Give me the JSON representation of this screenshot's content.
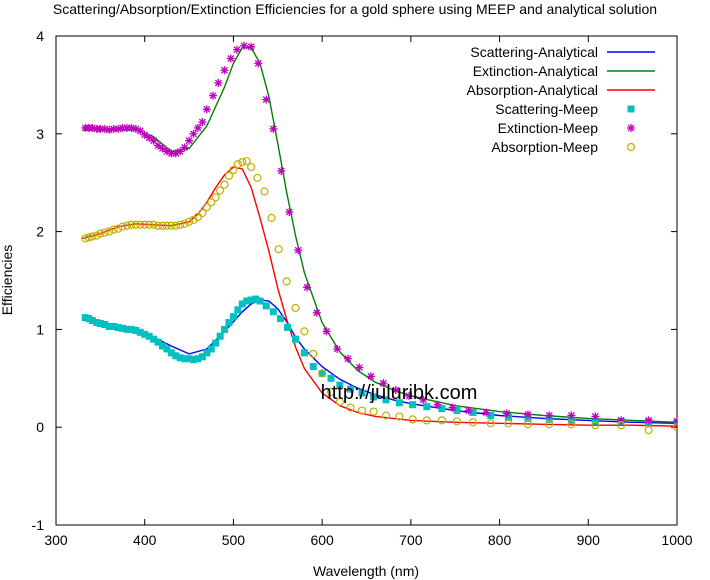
{
  "chart_data": {
    "type": "line",
    "title": "Scattering/Absorption/Extinction Efficiencies for a gold sphere using MEEP and analytical solution",
    "xlabel": "Wavelength (nm)",
    "ylabel": "Efficiencies",
    "xlim": [
      300,
      1000
    ],
    "ylim": [
      -1,
      4
    ],
    "xticks": [
      "300",
      "400",
      "500",
      "600",
      "700",
      "800",
      "900",
      "1000"
    ],
    "yticks": [
      "-1",
      "0",
      "1",
      "2",
      "3",
      "4"
    ],
    "grid": false,
    "legend_position": "top-right",
    "watermark": "http://juluribk.com",
    "series": [
      {
        "name": "Scattering-Analytical",
        "style": "line",
        "color": "#0000ff",
        "x": [
          330,
          350,
          370,
          390,
          410,
          430,
          450,
          470,
          490,
          500,
          510,
          520,
          530,
          540,
          550,
          560,
          570,
          580,
          600,
          620,
          640,
          660,
          680,
          700,
          750,
          800,
          850,
          900,
          950,
          1000
        ],
        "y": [
          1.12,
          1.07,
          1.02,
          0.98,
          0.92,
          0.83,
          0.75,
          0.8,
          0.98,
          1.08,
          1.18,
          1.26,
          1.3,
          1.29,
          1.21,
          1.08,
          0.92,
          0.8,
          0.62,
          0.49,
          0.4,
          0.33,
          0.28,
          0.24,
          0.17,
          0.12,
          0.09,
          0.07,
          0.05,
          0.04
        ]
      },
      {
        "name": "Extinction-Analytical",
        "style": "line",
        "color": "#008000",
        "x": [
          330,
          350,
          370,
          390,
          410,
          430,
          450,
          470,
          490,
          500,
          510,
          520,
          530,
          540,
          550,
          560,
          570,
          580,
          600,
          620,
          640,
          660,
          680,
          700,
          750,
          800,
          850,
          900,
          950,
          1000
        ],
        "y": [
          3.04,
          3.04,
          3.04,
          3.04,
          2.97,
          2.82,
          2.85,
          3.08,
          3.48,
          3.72,
          3.88,
          3.88,
          3.72,
          3.38,
          2.9,
          2.4,
          1.96,
          1.58,
          1.07,
          0.77,
          0.58,
          0.46,
          0.38,
          0.32,
          0.22,
          0.16,
          0.12,
          0.09,
          0.07,
          0.05
        ]
      },
      {
        "name": "Absorption-Analytical",
        "style": "line",
        "color": "#ff0000",
        "x": [
          330,
          350,
          370,
          390,
          410,
          430,
          450,
          460,
          470,
          480,
          490,
          500,
          510,
          520,
          530,
          540,
          550,
          560,
          570,
          580,
          600,
          620,
          640,
          660,
          680,
          700,
          750,
          800,
          850,
          900,
          950,
          1000
        ],
        "y": [
          1.93,
          1.98,
          2.05,
          2.08,
          2.07,
          2.06,
          2.1,
          2.18,
          2.3,
          2.45,
          2.58,
          2.66,
          2.64,
          2.45,
          2.14,
          1.8,
          1.42,
          1.1,
          0.82,
          0.6,
          0.35,
          0.22,
          0.15,
          0.11,
          0.09,
          0.07,
          0.05,
          0.04,
          0.03,
          0.02,
          0.02,
          0.01
        ]
      },
      {
        "name": "Scattering-Meep",
        "style": "square",
        "color": "#00c0c0",
        "x": [
          333,
          337,
          341,
          346,
          350,
          355,
          360,
          365,
          370,
          375,
          380,
          385,
          390,
          395,
          400,
          405,
          410,
          415,
          420,
          425,
          430,
          435,
          440,
          445,
          450,
          455,
          460,
          465,
          470,
          475,
          480,
          485,
          490,
          495,
          500,
          505,
          510,
          515,
          520,
          525,
          530,
          537,
          545,
          553,
          561,
          570,
          580,
          590,
          600,
          610,
          620,
          632,
          645,
          658,
          672,
          687,
          702,
          718,
          735,
          752,
          770,
          790,
          810,
          832,
          856,
          881,
          908,
          937,
          968,
          1000
        ],
        "y": [
          1.12,
          1.11,
          1.09,
          1.07,
          1.06,
          1.05,
          1.03,
          1.03,
          1.02,
          1.01,
          1.0,
          1.0,
          0.99,
          0.97,
          0.95,
          0.93,
          0.9,
          0.87,
          0.83,
          0.8,
          0.76,
          0.73,
          0.71,
          0.7,
          0.7,
          0.69,
          0.7,
          0.72,
          0.76,
          0.8,
          0.86,
          0.93,
          1.0,
          1.07,
          1.13,
          1.2,
          1.26,
          1.29,
          1.3,
          1.31,
          1.29,
          1.24,
          1.18,
          1.11,
          1.02,
          0.9,
          0.76,
          0.62,
          0.55,
          0.5,
          0.43,
          0.39,
          0.35,
          0.31,
          0.28,
          0.25,
          0.23,
          0.21,
          0.19,
          0.17,
          0.15,
          0.12,
          0.1,
          0.09,
          0.08,
          0.07,
          0.06,
          0.06,
          0.05,
          0.05
        ]
      },
      {
        "name": "Extinction-Meep",
        "style": "star",
        "color": "#c000c0",
        "x": [
          333,
          337,
          341,
          346,
          350,
          355,
          360,
          365,
          370,
          375,
          380,
          385,
          390,
          395,
          400,
          405,
          410,
          415,
          420,
          425,
          430,
          435,
          440,
          445,
          450,
          455,
          460,
          465,
          470,
          477,
          483,
          490,
          497,
          504,
          512,
          520,
          528,
          537,
          545,
          554,
          563,
          573,
          583,
          594,
          605,
          617,
          629,
          642,
          655,
          669,
          683,
          698,
          714,
          730,
          747,
          765,
          785,
          808,
          832,
          856,
          881,
          908,
          937,
          968,
          1000
        ],
        "y": [
          3.06,
          3.06,
          3.06,
          3.05,
          3.05,
          3.05,
          3.04,
          3.05,
          3.05,
          3.06,
          3.06,
          3.06,
          3.05,
          3.03,
          2.99,
          2.96,
          2.93,
          2.88,
          2.85,
          2.82,
          2.8,
          2.8,
          2.82,
          2.86,
          2.93,
          3.0,
          3.06,
          3.12,
          3.25,
          3.39,
          3.52,
          3.65,
          3.77,
          3.86,
          3.9,
          3.89,
          3.72,
          3.35,
          3.05,
          2.62,
          2.2,
          1.81,
          1.43,
          1.17,
          0.98,
          0.8,
          0.7,
          0.61,
          0.52,
          0.45,
          0.38,
          0.32,
          0.28,
          0.23,
          0.2,
          0.17,
          0.15,
          0.14,
          0.13,
          0.12,
          0.12,
          0.11,
          0.07,
          0.07,
          0.06
        ]
      },
      {
        "name": "Absorption-Meep",
        "style": "circle",
        "color": "#c0b000",
        "x": [
          333,
          337,
          341,
          346,
          350,
          355,
          360,
          365,
          370,
          375,
          380,
          385,
          390,
          395,
          400,
          405,
          410,
          415,
          420,
          425,
          430,
          435,
          440,
          445,
          450,
          455,
          460,
          465,
          470,
          475,
          480,
          485,
          490,
          495,
          500,
          505,
          510,
          515,
          520,
          527,
          535,
          543,
          551,
          560,
          570,
          580,
          590,
          600,
          610,
          620,
          632,
          645,
          658,
          672,
          687,
          702,
          718,
          735,
          752,
          770,
          790,
          810,
          832,
          856,
          881,
          908,
          937,
          968,
          1000
        ],
        "y": [
          1.93,
          1.94,
          1.95,
          1.96,
          1.98,
          1.99,
          2.0,
          2.02,
          2.03,
          2.05,
          2.06,
          2.07,
          2.07,
          2.07,
          2.07,
          2.07,
          2.07,
          2.06,
          2.06,
          2.06,
          2.06,
          2.06,
          2.07,
          2.08,
          2.1,
          2.12,
          2.15,
          2.19,
          2.25,
          2.3,
          2.35,
          2.42,
          2.48,
          2.57,
          2.63,
          2.69,
          2.71,
          2.72,
          2.66,
          2.55,
          2.41,
          2.14,
          1.82,
          1.49,
          1.22,
          0.98,
          0.75,
          0.55,
          0.36,
          0.26,
          0.2,
          0.17,
          0.16,
          0.12,
          0.11,
          0.08,
          0.07,
          0.07,
          0.06,
          0.05,
          0.04,
          0.04,
          0.03,
          0.03,
          0.03,
          0.02,
          0.02,
          -0.03,
          0.0
        ]
      }
    ]
  }
}
